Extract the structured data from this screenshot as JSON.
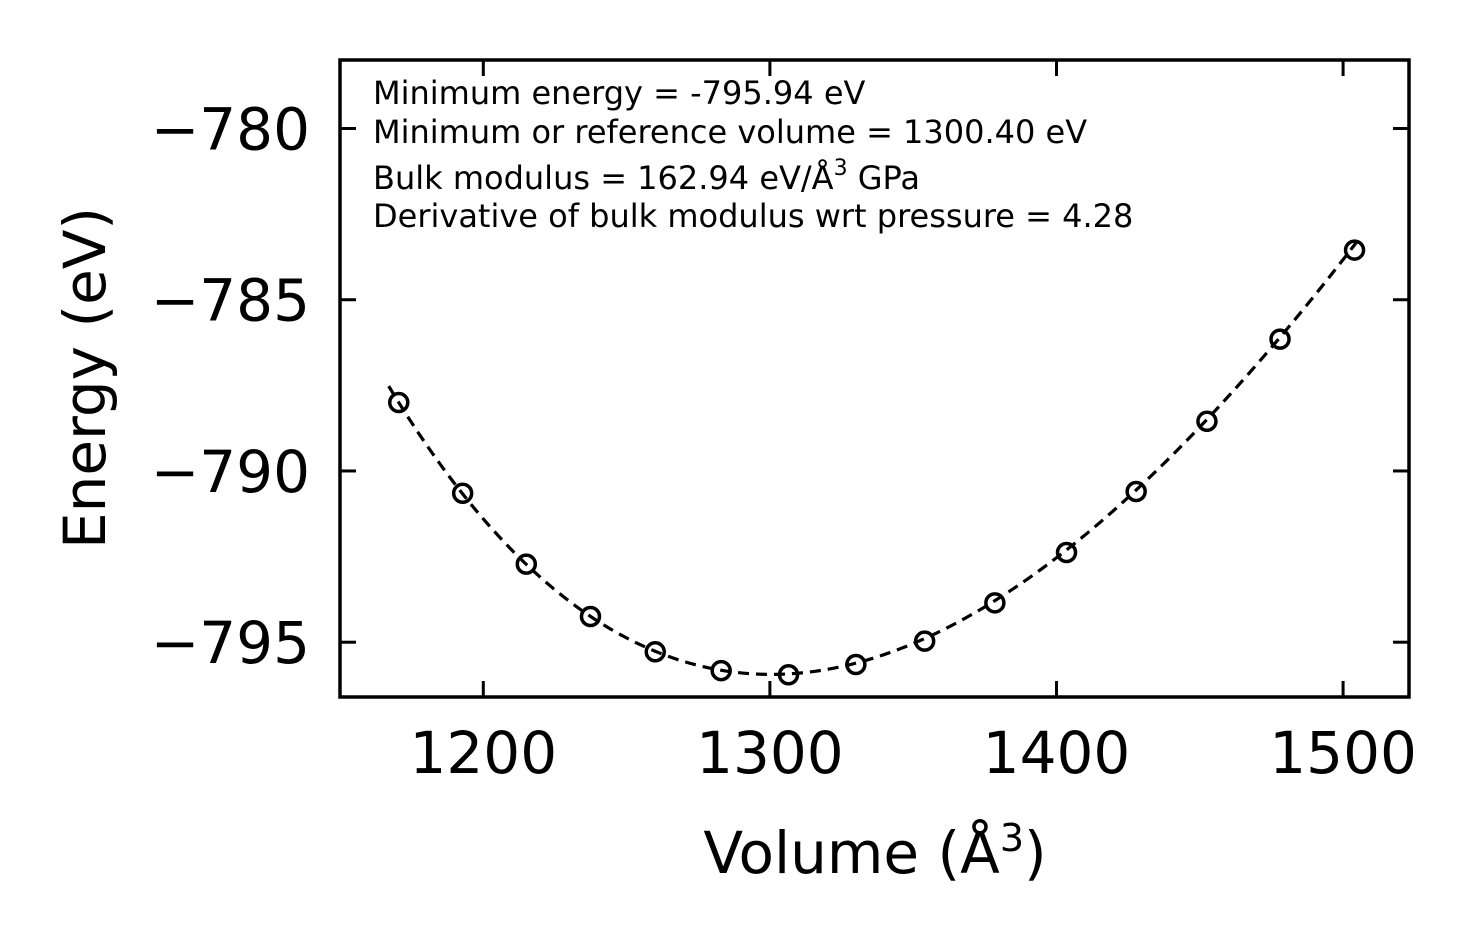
{
  "chart_data": {
    "type": "scatter",
    "xlabel": "Volume (Å",
    "xlabel_sup": "3",
    "xlabel_close": ")",
    "ylabel": "Energy (eV)",
    "xlim": [
      1150,
      1523
    ],
    "ylim": [
      -796.6,
      -778.0
    ],
    "x_ticks": [
      1200,
      1300,
      1400,
      1500
    ],
    "x_tick_labels": [
      "1200",
      "1300",
      "1400",
      "1500"
    ],
    "y_ticks": [
      -780,
      -785,
      -790,
      -795
    ],
    "y_tick_labels": [
      "−780",
      "−785",
      "−790",
      "−795"
    ],
    "annotations": {
      "line1": "Minimum energy = -795.94 eV",
      "line2": "Minimum or reference volume = 1300.40 eV",
      "line3_pre": "Bulk modulus = 162.94 eV/Å",
      "line3_sup": "3",
      "line3_post": " GPa",
      "line4": "Derivative of bulk modulus wrt pressure = 4.28"
    },
    "series": [
      {
        "name": "data",
        "style": "open-circle",
        "x": [
          1170.5,
          1192.8,
          1215.0,
          1237.4,
          1260.0,
          1283.0,
          1306.5,
          1330.0,
          1354.0,
          1378.5,
          1403.5,
          1427.8,
          1452.5,
          1478.0,
          1504.0
        ],
        "y": [
          -788.0,
          -790.65,
          -792.72,
          -794.25,
          -795.28,
          -795.83,
          -795.95,
          -795.65,
          -794.97,
          -793.85,
          -792.38,
          -790.6,
          -788.55,
          -786.15,
          -783.55
        ]
      },
      {
        "name": "fit",
        "style": "dashed-line",
        "equation_of_state": "birch-murnaghan",
        "E0": -795.94,
        "V0": 1300.4,
        "B0": 162.94,
        "B0_prime": 4.28,
        "x_range": [
          1167,
          1505
        ]
      }
    ]
  }
}
